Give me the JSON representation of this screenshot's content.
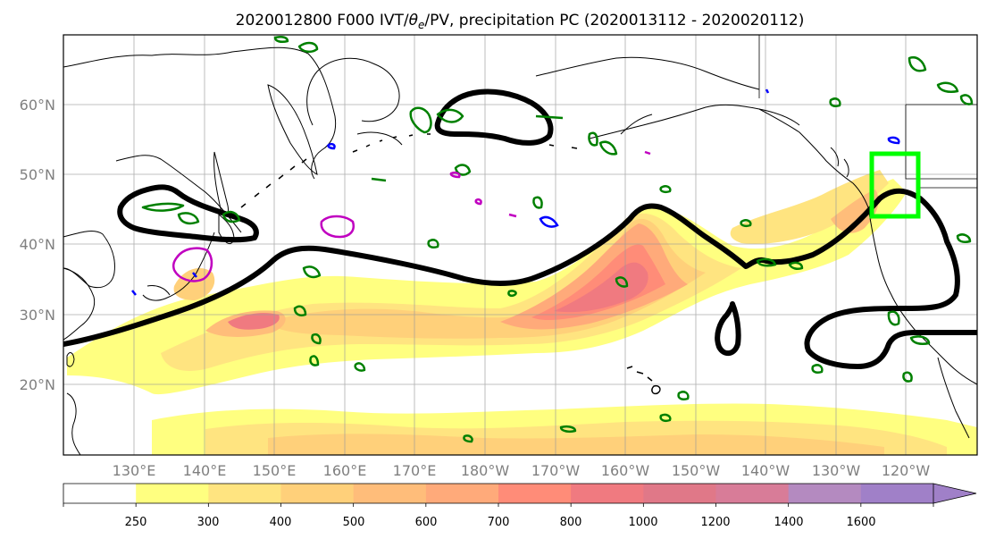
{
  "title": "2020012800 F000 IVT/θe/PV, precipitation PC (2020013112 - 2020020112)",
  "title_parts": {
    "pre": "2020012800 F000 IVT/",
    "theta": "θ",
    "sub": "e",
    "post": "/PV, precipitation PC (2020013112 - 2020020112)"
  },
  "map": {
    "lat_labels": [
      "60°N",
      "50°N",
      "40°N",
      "30°N",
      "20°N"
    ],
    "lon_labels": [
      "130°E",
      "140°E",
      "150°E",
      "160°E",
      "170°E",
      "180°W",
      "170°W",
      "160°W",
      "150°W",
      "140°W",
      "130°W",
      "120°W"
    ],
    "grid": true,
    "contour_colors": {
      "thick_line": "#000000",
      "green": "#008000",
      "magenta": "#c000c0",
      "blue": "#0000ff",
      "box": "#00ff00"
    }
  },
  "colorbar": {
    "labels": [
      "250",
      "300",
      "400",
      "500",
      "600",
      "700",
      "800",
      "1000",
      "1200",
      "1400",
      "1600"
    ],
    "colors": [
      "#ffffff",
      "#ffff80",
      "#ffe480",
      "#ffd07a",
      "#ffbd7a",
      "#ffaa7a",
      "#ff8c78",
      "#f07a80",
      "#e07888",
      "#d87c98",
      "#b48ac0",
      "#a080c8"
    ]
  }
}
